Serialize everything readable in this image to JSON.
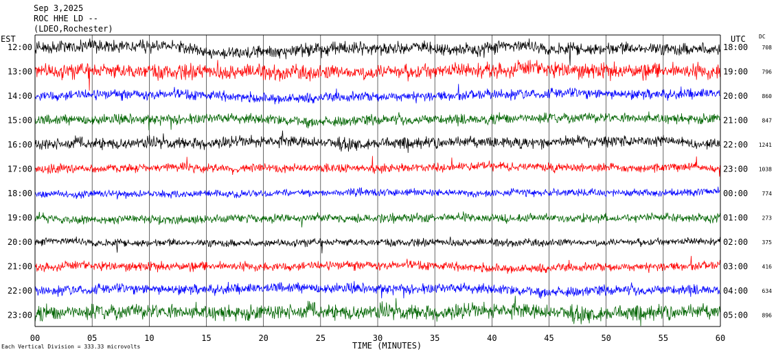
{
  "header": {
    "date": "Sep 3,2025",
    "station": "ROC HHE LD --",
    "network": "(LDEO,Rochester)"
  },
  "left_axis_label": "EST",
  "right_axis_label": "UTC",
  "dc_label": "DC",
  "footer_note": "Each Vertical Division =  333.33 microvolts",
  "colors": {
    "black": "#000000",
    "red": "#ff0000",
    "blue": "#0000ff",
    "green": "#006400",
    "grid": "#000000",
    "background": "#ffffff"
  },
  "chart_data": {
    "type": "line",
    "subtype": "helicorder",
    "title": "",
    "xlabel": "TIME (MINUTES)",
    "xlim": [
      0,
      60
    ],
    "x_ticks": [
      "00",
      "05",
      "10",
      "15",
      "20",
      "25",
      "30",
      "35",
      "40",
      "45",
      "50",
      "55",
      "60"
    ],
    "x_tick_values": [
      0,
      5,
      10,
      15,
      20,
      25,
      30,
      35,
      40,
      45,
      50,
      55,
      60
    ],
    "vertical_gridlines": true,
    "color_cycle": [
      "black",
      "red",
      "blue",
      "green"
    ],
    "rows": [
      {
        "est": "12:00",
        "utc": "18:00",
        "dc": "708"
      },
      {
        "est": "13:00",
        "utc": "19:00",
        "dc": "796"
      },
      {
        "est": "14:00",
        "utc": "20:00",
        "dc": "860"
      },
      {
        "est": "15:00",
        "utc": "21:00",
        "dc": "847"
      },
      {
        "est": "16:00",
        "utc": "22:00",
        "dc": "1241"
      },
      {
        "est": "17:00",
        "utc": "23:00",
        "dc": "1038"
      },
      {
        "est": "18:00",
        "utc": "00:00",
        "dc": "774"
      },
      {
        "est": "19:00",
        "utc": "01:00",
        "dc": "273"
      },
      {
        "est": "20:00",
        "utc": "02:00",
        "dc": "375"
      },
      {
        "est": "21:00",
        "utc": "03:00",
        "dc": "416"
      },
      {
        "est": "22:00",
        "utc": "04:00",
        "dc": "634"
      },
      {
        "est": "23:00",
        "utc": "05:00",
        "dc": "896"
      }
    ],
    "noise_amplitude_divisions": [
      0.5,
      0.6,
      0.4,
      0.4,
      0.45,
      0.35,
      0.3,
      0.35,
      0.3,
      0.35,
      0.4,
      0.6
    ]
  }
}
